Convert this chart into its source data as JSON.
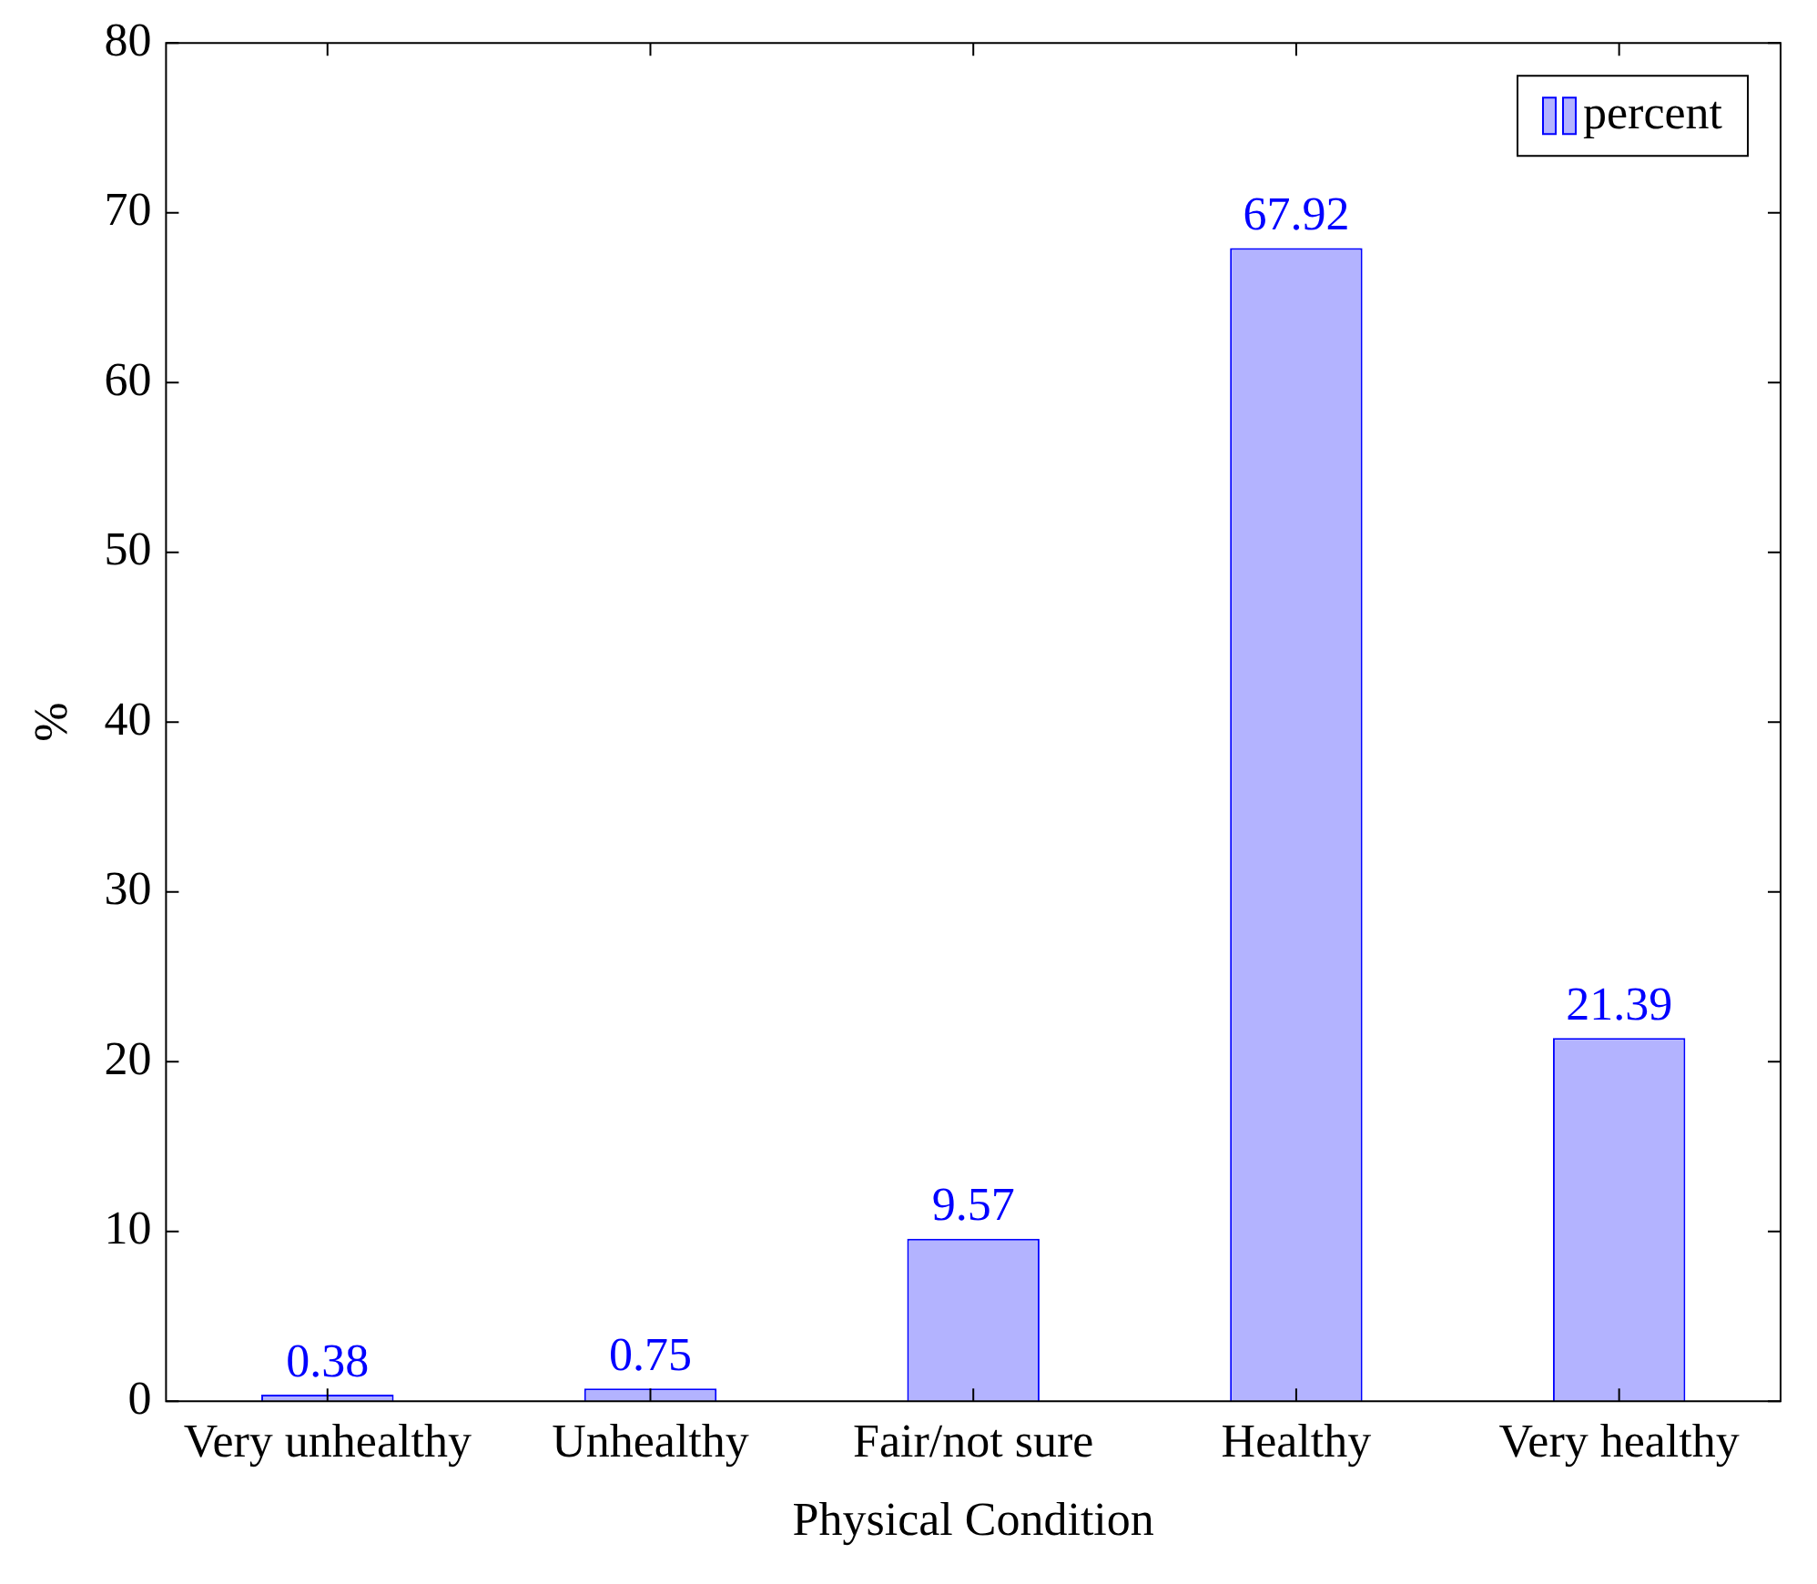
{
  "chart_data": {
    "type": "bar",
    "xlabel": "Physical Condition",
    "ylabel": "%",
    "categories": [
      "Very unhealthy",
      "Unhealthy",
      "Fair/not sure",
      "Healthy",
      "Very healthy"
    ],
    "series": [
      {
        "name": "percent",
        "color": "#b3b3ff",
        "values": [
          0.38,
          0.75,
          9.57,
          67.92,
          21.39
        ]
      }
    ],
    "ylim": [
      0,
      80
    ],
    "yticks": [
      0,
      10,
      20,
      30,
      40,
      50,
      60,
      70,
      80
    ],
    "grid": false,
    "legend": "top right",
    "data_labels": true
  }
}
